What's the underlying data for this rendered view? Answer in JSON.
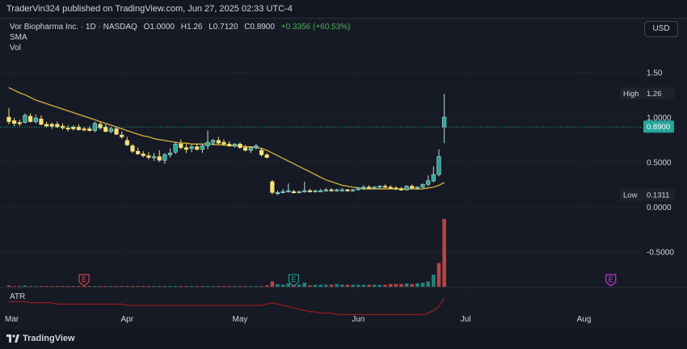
{
  "header": {
    "publish_text": "TraderVin324 published on TradingView.com, Jun 27, 2025 02:33 UTC-4"
  },
  "legend": {
    "symbol": "Vor Biopharma Inc. · 1D · NASDAQ",
    "open": "O1.0000",
    "high": "H1.26",
    "low": "L0.7120",
    "close": "C0.8900",
    "change": "+0.3356 (+60.53%)",
    "sma_label": "SMA",
    "vol_label": "Vol"
  },
  "currency_button": "USD",
  "atr_label": "ATR",
  "footer": {
    "brand": "TradingView"
  },
  "colors": {
    "up": "#26a69a",
    "down": "#ef5350",
    "candle_yellow": "#f7e17b",
    "sma": "#d6b43a",
    "atr": "#b71c1c",
    "badge_high": "#1e222d",
    "badge_last": "#26a69a"
  },
  "chart_data": {
    "type": "candlestick",
    "y_ticks": [
      "1.50",
      "1.0000",
      "0.5000",
      "0.0000",
      "-0.5000"
    ],
    "y_tick_values": [
      1.5,
      1.0,
      0.5,
      0.0,
      -0.5
    ],
    "x_ticks": [
      "Mar",
      "Apr",
      "May",
      "Jun",
      "Jul",
      "Aug"
    ],
    "x_tick_index": [
      0,
      22,
      43,
      65,
      85,
      107
    ],
    "ylim": [
      -0.9,
      1.6
    ],
    "badges": [
      {
        "label": "High",
        "value": "1.26",
        "price": 1.26
      },
      {
        "label": "",
        "value": "0.8900",
        "price": 0.89
      },
      {
        "label": "Low",
        "value": "0.1311",
        "price": 0.13
      }
    ],
    "event_markers": [
      {
        "label": "E",
        "index": 14,
        "color": "#ef5350"
      },
      {
        "label": "E",
        "index": 53,
        "color": "#26a69a"
      },
      {
        "label": "E",
        "index": 112,
        "color": "#e040fb"
      }
    ],
    "candles_ohlc": [
      [
        1.0,
        1.1,
        0.92,
        0.95
      ],
      [
        0.96,
        0.99,
        0.9,
        0.93
      ],
      [
        0.93,
        0.97,
        0.9,
        0.94
      ],
      [
        0.94,
        1.04,
        0.93,
        1.02
      ],
      [
        1.01,
        1.04,
        0.94,
        0.95
      ],
      [
        0.95,
        1.03,
        0.93,
        0.99
      ],
      [
        0.98,
        1.02,
        0.91,
        0.92
      ],
      [
        0.92,
        0.95,
        0.88,
        0.9
      ],
      [
        0.9,
        0.94,
        0.87,
        0.92
      ],
      [
        0.92,
        0.95,
        0.88,
        0.89
      ],
      [
        0.9,
        0.93,
        0.86,
        0.88
      ],
      [
        0.88,
        0.91,
        0.84,
        0.87
      ],
      [
        0.87,
        0.91,
        0.85,
        0.89
      ],
      [
        0.89,
        0.92,
        0.85,
        0.86
      ],
      [
        0.86,
        0.89,
        0.84,
        0.87
      ],
      [
        0.87,
        0.9,
        0.84,
        0.85
      ],
      [
        0.85,
        0.95,
        0.83,
        0.93
      ],
      [
        0.92,
        0.95,
        0.86,
        0.88
      ],
      [
        0.89,
        0.92,
        0.83,
        0.84
      ],
      [
        0.84,
        0.89,
        0.82,
        0.87
      ],
      [
        0.87,
        0.9,
        0.8,
        0.81
      ],
      [
        0.8,
        0.84,
        0.76,
        0.78
      ],
      [
        0.74,
        0.78,
        0.68,
        0.69
      ],
      [
        0.68,
        0.7,
        0.6,
        0.62
      ],
      [
        0.62,
        0.66,
        0.58,
        0.59
      ],
      [
        0.59,
        0.62,
        0.55,
        0.57
      ],
      [
        0.57,
        0.61,
        0.53,
        0.55
      ],
      [
        0.55,
        0.6,
        0.51,
        0.56
      ],
      [
        0.56,
        0.63,
        0.5,
        0.52
      ],
      [
        0.52,
        0.6,
        0.48,
        0.58
      ],
      [
        0.58,
        0.65,
        0.55,
        0.6
      ],
      [
        0.61,
        0.72,
        0.59,
        0.7
      ],
      [
        0.7,
        0.75,
        0.64,
        0.66
      ],
      [
        0.66,
        0.7,
        0.6,
        0.64
      ],
      [
        0.65,
        0.69,
        0.61,
        0.67
      ],
      [
        0.67,
        0.7,
        0.63,
        0.64
      ],
      [
        0.64,
        0.7,
        0.6,
        0.68
      ],
      [
        0.68,
        0.85,
        0.64,
        0.72
      ],
      [
        0.72,
        0.76,
        0.68,
        0.74
      ],
      [
        0.74,
        0.78,
        0.7,
        0.71
      ],
      [
        0.72,
        0.75,
        0.68,
        0.7
      ],
      [
        0.7,
        0.73,
        0.67,
        0.68
      ],
      [
        0.68,
        0.71,
        0.66,
        0.7
      ],
      [
        0.7,
        0.72,
        0.65,
        0.66
      ],
      [
        0.66,
        0.69,
        0.62,
        0.63
      ],
      [
        0.63,
        0.67,
        0.6,
        0.66
      ],
      [
        0.66,
        0.7,
        0.64,
        0.68
      ],
      [
        0.63,
        0.66,
        0.56,
        0.58
      ],
      [
        0.58,
        0.6,
        0.54,
        0.55
      ],
      [
        0.28,
        0.3,
        0.14,
        0.16
      ],
      [
        0.15,
        0.18,
        0.13,
        0.16
      ],
      [
        0.16,
        0.2,
        0.15,
        0.17
      ],
      [
        0.17,
        0.26,
        0.16,
        0.18
      ],
      [
        0.17,
        0.19,
        0.15,
        0.16
      ],
      [
        0.16,
        0.18,
        0.15,
        0.17
      ],
      [
        0.17,
        0.28,
        0.16,
        0.18
      ],
      [
        0.18,
        0.2,
        0.16,
        0.17
      ],
      [
        0.17,
        0.19,
        0.16,
        0.18
      ],
      [
        0.18,
        0.2,
        0.17,
        0.18
      ],
      [
        0.18,
        0.21,
        0.17,
        0.19
      ],
      [
        0.19,
        0.21,
        0.17,
        0.18
      ],
      [
        0.18,
        0.2,
        0.17,
        0.19
      ],
      [
        0.19,
        0.21,
        0.18,
        0.19
      ],
      [
        0.19,
        0.2,
        0.17,
        0.18
      ],
      [
        0.18,
        0.2,
        0.17,
        0.19
      ],
      [
        0.19,
        0.22,
        0.18,
        0.21
      ],
      [
        0.21,
        0.24,
        0.19,
        0.22
      ],
      [
        0.22,
        0.24,
        0.2,
        0.21
      ],
      [
        0.21,
        0.23,
        0.2,
        0.22
      ],
      [
        0.22,
        0.24,
        0.21,
        0.23
      ],
      [
        0.23,
        0.25,
        0.21,
        0.22
      ],
      [
        0.22,
        0.24,
        0.2,
        0.21
      ],
      [
        0.21,
        0.23,
        0.19,
        0.2
      ],
      [
        0.2,
        0.22,
        0.18,
        0.19
      ],
      [
        0.19,
        0.24,
        0.18,
        0.23
      ],
      [
        0.23,
        0.25,
        0.2,
        0.21
      ],
      [
        0.21,
        0.23,
        0.19,
        0.22
      ],
      [
        0.22,
        0.26,
        0.21,
        0.25
      ],
      [
        0.25,
        0.35,
        0.23,
        0.29
      ],
      [
        0.29,
        0.45,
        0.27,
        0.36
      ],
      [
        0.36,
        0.64,
        0.34,
        0.56
      ],
      [
        1.0,
        1.26,
        0.71,
        0.89
      ]
    ],
    "candle_colors": [
      "y",
      "y",
      "y",
      "u",
      "y",
      "u",
      "y",
      "y",
      "y",
      "y",
      "y",
      "y",
      "y",
      "y",
      "y",
      "y",
      "u",
      "y",
      "y",
      "u",
      "y",
      "y",
      "y",
      "y",
      "y",
      "y",
      "y",
      "u",
      "y",
      "u",
      "u",
      "u",
      "y",
      "y",
      "u",
      "y",
      "u",
      "u",
      "u",
      "y",
      "y",
      "y",
      "u",
      "y",
      "y",
      "u",
      "u",
      "y",
      "y",
      "y",
      "u",
      "u",
      "u",
      "y",
      "u",
      "u",
      "y",
      "u",
      "u",
      "u",
      "y",
      "u",
      "u",
      "y",
      "u",
      "u",
      "u",
      "y",
      "u",
      "u",
      "y",
      "y",
      "y",
      "y",
      "u",
      "y",
      "u",
      "u",
      "u",
      "u",
      "u",
      "u"
    ],
    "sma_values": [
      1.33,
      1.3,
      1.27,
      1.25,
      1.22,
      1.19,
      1.17,
      1.15,
      1.13,
      1.11,
      1.09,
      1.07,
      1.05,
      1.03,
      1.01,
      0.99,
      0.97,
      0.95,
      0.93,
      0.91,
      0.89,
      0.87,
      0.85,
      0.83,
      0.81,
      0.79,
      0.78,
      0.76,
      0.75,
      0.74,
      0.73,
      0.72,
      0.71,
      0.71,
      0.7,
      0.7,
      0.7,
      0.7,
      0.7,
      0.69,
      0.69,
      0.68,
      0.68,
      0.68,
      0.67,
      0.67,
      0.66,
      0.65,
      0.63,
      0.6,
      0.57,
      0.54,
      0.51,
      0.48,
      0.45,
      0.42,
      0.39,
      0.36,
      0.33,
      0.3,
      0.28,
      0.26,
      0.24,
      0.23,
      0.22,
      0.21,
      0.2,
      0.2,
      0.2,
      0.2,
      0.2,
      0.2,
      0.2,
      0.2,
      0.2,
      0.2,
      0.2,
      0.2,
      0.21,
      0.22,
      0.24,
      0.27
    ],
    "volume_values": [
      2,
      1,
      1,
      2,
      1,
      1,
      1,
      1,
      1,
      1,
      1,
      1,
      1,
      1,
      1,
      1,
      1,
      1,
      1,
      1,
      1,
      1,
      1,
      1,
      1,
      1,
      1,
      1,
      1,
      1,
      1,
      1,
      1,
      1,
      1,
      1,
      1,
      1,
      1,
      1,
      1,
      1,
      1,
      1,
      1,
      1,
      1,
      1,
      2,
      8,
      4,
      3,
      5,
      3,
      3,
      6,
      2,
      3,
      3,
      3,
      3,
      4,
      3,
      3,
      3,
      3,
      3,
      3,
      3,
      3,
      3,
      4,
      4,
      4,
      5,
      4,
      5,
      6,
      8,
      18,
      35,
      100
    ],
    "volume_colors": [
      "d",
      "d",
      "d",
      "u",
      "d",
      "u",
      "d",
      "d",
      "d",
      "d",
      "d",
      "d",
      "d",
      "d",
      "d",
      "d",
      "u",
      "d",
      "d",
      "u",
      "d",
      "d",
      "d",
      "d",
      "d",
      "d",
      "d",
      "u",
      "d",
      "u",
      "u",
      "u",
      "d",
      "d",
      "u",
      "d",
      "u",
      "u",
      "u",
      "d",
      "d",
      "d",
      "u",
      "d",
      "d",
      "u",
      "u",
      "d",
      "d",
      "d",
      "u",
      "u",
      "u",
      "d",
      "u",
      "u",
      "d",
      "u",
      "u",
      "u",
      "d",
      "u",
      "u",
      "d",
      "u",
      "u",
      "u",
      "d",
      "u",
      "u",
      "d",
      "d",
      "d",
      "d",
      "u",
      "d",
      "u",
      "u",
      "u",
      "u",
      "d",
      "d"
    ],
    "atr_values": [
      0.12,
      0.12,
      0.12,
      0.12,
      0.11,
      0.11,
      0.11,
      0.11,
      0.11,
      0.1,
      0.1,
      0.1,
      0.1,
      0.1,
      0.1,
      0.1,
      0.1,
      0.1,
      0.1,
      0.1,
      0.1,
      0.1,
      0.09,
      0.09,
      0.09,
      0.09,
      0.09,
      0.09,
      0.09,
      0.09,
      0.09,
      0.09,
      0.09,
      0.09,
      0.09,
      0.09,
      0.09,
      0.09,
      0.09,
      0.09,
      0.09,
      0.09,
      0.09,
      0.09,
      0.09,
      0.09,
      0.09,
      0.09,
      0.1,
      0.11,
      0.1,
      0.09,
      0.08,
      0.07,
      0.06,
      0.05,
      0.04,
      0.04,
      0.03,
      0.03,
      0.03,
      0.02,
      0.02,
      0.02,
      0.02,
      0.02,
      0.02,
      0.02,
      0.02,
      0.02,
      0.02,
      0.02,
      0.02,
      0.02,
      0.02,
      0.02,
      0.02,
      0.02,
      0.03,
      0.05,
      0.08,
      0.15
    ]
  }
}
